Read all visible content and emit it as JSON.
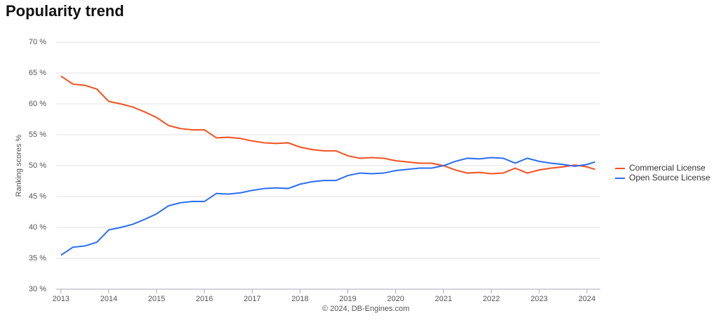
{
  "chart_data": {
    "type": "line",
    "title": "Popularity trend",
    "y_label": "Ranking scores %",
    "credit": "© 2024, DB-Engines.com",
    "x": [
      2013,
      2013.25,
      2013.5,
      2013.75,
      2014,
      2014.25,
      2014.5,
      2014.75,
      2015,
      2015.25,
      2015.5,
      2015.75,
      2016,
      2016.25,
      2016.5,
      2016.75,
      2017,
      2017.25,
      2017.5,
      2017.75,
      2018,
      2018.25,
      2018.5,
      2018.75,
      2019,
      2019.25,
      2019.5,
      2019.75,
      2020,
      2020.25,
      2020.5,
      2020.75,
      2021,
      2021.25,
      2021.5,
      2021.75,
      2022,
      2022.25,
      2022.5,
      2022.75,
      2023,
      2023.25,
      2023.5,
      2023.75,
      2024,
      2024.17
    ],
    "series": [
      {
        "name": "Commercial License",
        "color": "#f4511e",
        "values": [
          64.5,
          63.2,
          63,
          62.4,
          60.4,
          60,
          59.5,
          58.7,
          57.8,
          56.5,
          56,
          55.8,
          55.8,
          54.5,
          54.6,
          54.4,
          54,
          53.7,
          53.6,
          53.7,
          53,
          52.6,
          52.4,
          52.4,
          51.6,
          51.2,
          51.3,
          51.2,
          50.8,
          50.6,
          50.4,
          50.4,
          50,
          49.3,
          48.8,
          48.9,
          48.7,
          48.8,
          49.6,
          48.8,
          49.3,
          49.6,
          49.8,
          50.1,
          49.8,
          49.4
        ]
      },
      {
        "name": "Open Source License",
        "color": "#2a6ef0",
        "values": [
          35.5,
          36.8,
          37,
          37.6,
          39.6,
          40,
          40.5,
          41.3,
          42.2,
          43.5,
          44,
          44.2,
          44.2,
          45.5,
          45.4,
          45.6,
          46,
          46.3,
          46.4,
          46.3,
          47,
          47.4,
          47.6,
          47.6,
          48.4,
          48.8,
          48.7,
          48.8,
          49.2,
          49.4,
          49.6,
          49.6,
          50,
          50.7,
          51.2,
          51.1,
          51.3,
          51.2,
          50.4,
          51.2,
          50.7,
          50.4,
          50.2,
          49.9,
          50.2,
          50.6
        ]
      }
    ],
    "xlim": [
      2012.9,
      2024.28
    ],
    "xticks": [
      2013,
      2014,
      2015,
      2016,
      2017,
      2018,
      2019,
      2020,
      2021,
      2022,
      2023,
      2024
    ],
    "ylim": [
      30,
      70
    ],
    "yticks": [
      {
        "value": 30,
        "label": "30 %"
      },
      {
        "value": 35,
        "label": "35 %"
      },
      {
        "value": 40,
        "label": "40 %"
      },
      {
        "value": 45,
        "label": "45 %"
      },
      {
        "value": 50,
        "label": "50 %"
      },
      {
        "value": 55,
        "label": "55 %"
      },
      {
        "value": 60,
        "label": "60 %"
      },
      {
        "value": 65,
        "label": "65 %"
      },
      {
        "value": 70,
        "label": "70 %"
      }
    ],
    "grid": true,
    "legend": "right"
  }
}
